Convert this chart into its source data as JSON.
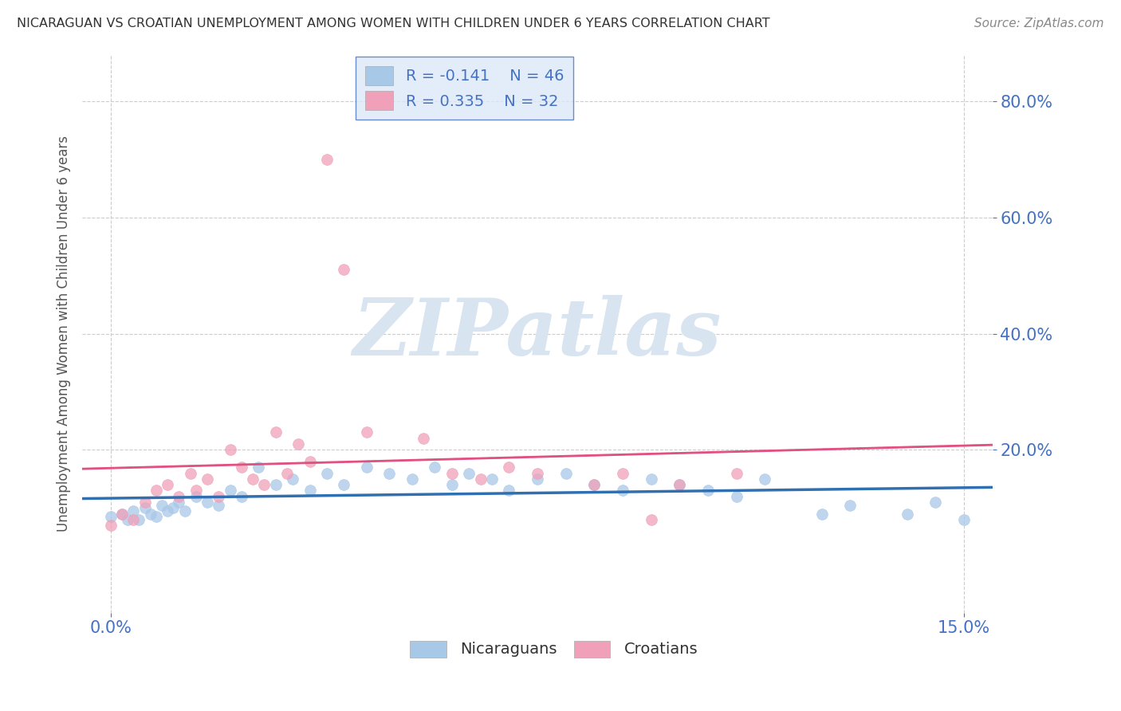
{
  "title": "NICARAGUAN VS CROATIAN UNEMPLOYMENT AMONG WOMEN WITH CHILDREN UNDER 6 YEARS CORRELATION CHART",
  "source": "Source: ZipAtlas.com",
  "ylabel": "Unemployment Among Women with Children Under 6 years",
  "x_ticks": [
    0.0,
    15.0
  ],
  "y_ticks": [
    20.0,
    40.0,
    60.0,
    80.0
  ],
  "xlim": [
    -0.5,
    15.5
  ],
  "ylim": [
    -8.0,
    88.0
  ],
  "nicaraguan": {
    "label": "Nicaraguans",
    "R": -0.141,
    "N": 46,
    "scatter_color": "#a8c8e8",
    "trend_color": "#3070b0",
    "trend_style": "solid",
    "x": [
      0.0,
      0.2,
      0.3,
      0.4,
      0.5,
      0.6,
      0.7,
      0.8,
      0.9,
      1.0,
      1.1,
      1.2,
      1.3,
      1.5,
      1.7,
      1.9,
      2.1,
      2.3,
      2.6,
      2.9,
      3.2,
      3.5,
      3.8,
      4.1,
      4.5,
      4.9,
      5.3,
      5.7,
      6.0,
      6.3,
      6.7,
      7.0,
      7.5,
      8.0,
      8.5,
      9.0,
      9.5,
      10.0,
      10.5,
      11.0,
      11.5,
      12.5,
      13.0,
      14.0,
      14.5,
      15.0
    ],
    "y": [
      8.5,
      9.0,
      8.0,
      9.5,
      8.0,
      10.0,
      9.0,
      8.5,
      10.5,
      9.5,
      10.0,
      11.0,
      9.5,
      12.0,
      11.0,
      10.5,
      13.0,
      12.0,
      17.0,
      14.0,
      15.0,
      13.0,
      16.0,
      14.0,
      17.0,
      16.0,
      15.0,
      17.0,
      14.0,
      16.0,
      15.0,
      13.0,
      15.0,
      16.0,
      14.0,
      13.0,
      15.0,
      14.0,
      13.0,
      12.0,
      15.0,
      9.0,
      10.5,
      9.0,
      11.0,
      8.0
    ]
  },
  "croatian": {
    "label": "Croatians",
    "R": 0.335,
    "N": 32,
    "scatter_color": "#f0a0b8",
    "trend_color": "#e05080",
    "trend_style": "solid",
    "x": [
      0.0,
      0.2,
      0.4,
      0.6,
      0.8,
      1.0,
      1.2,
      1.4,
      1.5,
      1.7,
      1.9,
      2.1,
      2.3,
      2.5,
      2.7,
      2.9,
      3.1,
      3.3,
      3.5,
      3.8,
      4.1,
      4.5,
      5.5,
      6.0,
      6.5,
      7.0,
      7.5,
      8.5,
      9.0,
      9.5,
      10.0,
      11.0
    ],
    "y": [
      7.0,
      9.0,
      8.0,
      11.0,
      13.0,
      14.0,
      12.0,
      16.0,
      13.0,
      15.0,
      12.0,
      20.0,
      17.0,
      15.0,
      14.0,
      23.0,
      16.0,
      21.0,
      18.0,
      70.0,
      51.0,
      23.0,
      22.0,
      16.0,
      15.0,
      17.0,
      16.0,
      14.0,
      16.0,
      8.0,
      14.0,
      16.0
    ]
  },
  "watermark_text": "ZIPatlas",
  "watermark_color": "#d8e4f0",
  "background_color": "#ffffff",
  "grid_color": "#cccccc",
  "title_color": "#333333",
  "axis_label_color": "#555555",
  "tick_color": "#4472c4",
  "legend_face_color": "#dce8f8",
  "legend_edge_color": "#4472c4",
  "legend_r_label_color": "#333333",
  "legend_val_color": "#4472c4"
}
